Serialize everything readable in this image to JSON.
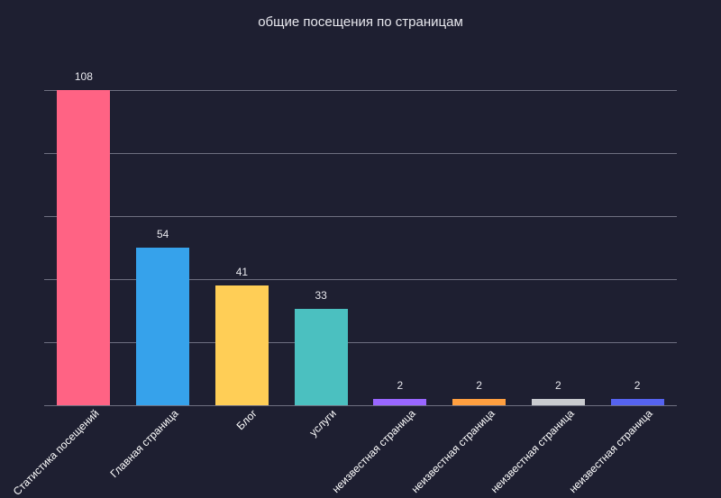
{
  "chart_data": {
    "type": "bar",
    "title": "общие посещения по страницам",
    "xlabel": "",
    "ylabel": "",
    "ylim": [
      0,
      108
    ],
    "grid": true,
    "categories": [
      "Статистика посещений",
      "Главная страница",
      "Блог",
      "услуги",
      "неизвестная страница",
      "неизвестная страница",
      "неизвестная страница",
      "неизвестная страница"
    ],
    "values": [
      108,
      54,
      41,
      33,
      2,
      2,
      2,
      2
    ],
    "colors": [
      "#ff6384",
      "#36a2eb",
      "#ffce56",
      "#4bc0c0",
      "#9966ff",
      "#ff9f40",
      "#c9cbcf",
      "#5563f0"
    ]
  }
}
